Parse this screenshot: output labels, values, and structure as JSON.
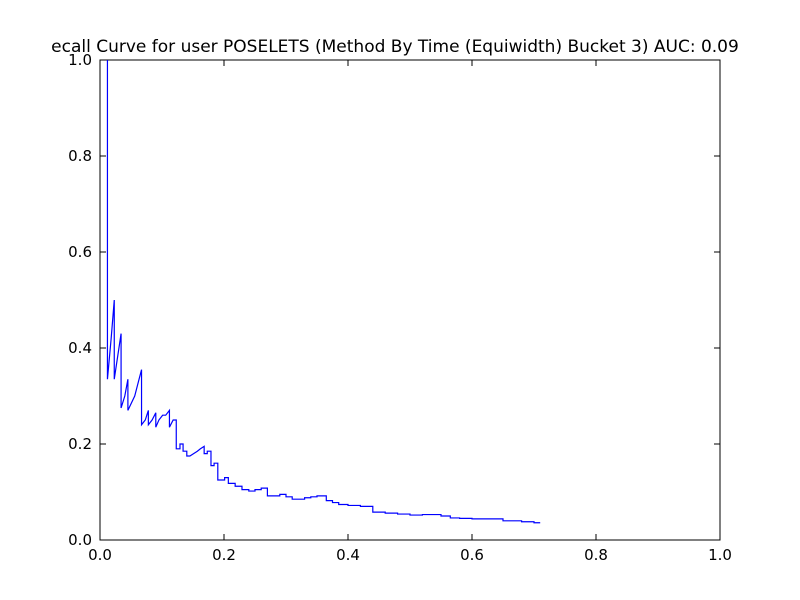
{
  "chart_data": {
    "type": "line",
    "title": "ecall Curve for user POSELETS (Method By Time (Equiwidth) Bucket 3) AUC: 0.09",
    "xlabel": "",
    "ylabel": "",
    "xlim": [
      0.0,
      1.0
    ],
    "ylim": [
      0.0,
      1.0
    ],
    "grid": false,
    "x_ticks": [
      "0.0",
      "0.2",
      "0.4",
      "0.6",
      "0.8",
      "1.0"
    ],
    "y_ticks": [
      "0.0",
      "0.2",
      "0.4",
      "0.6",
      "0.8",
      "1.0"
    ],
    "line_color": "#0000ff",
    "series": [
      {
        "points": [
          [
            0.012,
            1.0
          ],
          [
            0.012,
            0.335
          ],
          [
            0.018,
            0.42
          ],
          [
            0.023,
            0.5
          ],
          [
            0.023,
            0.335
          ],
          [
            0.034,
            0.43
          ],
          [
            0.034,
            0.275
          ],
          [
            0.04,
            0.3
          ],
          [
            0.045,
            0.335
          ],
          [
            0.045,
            0.27
          ],
          [
            0.056,
            0.3
          ],
          [
            0.067,
            0.355
          ],
          [
            0.067,
            0.24
          ],
          [
            0.073,
            0.25
          ],
          [
            0.078,
            0.27
          ],
          [
            0.078,
            0.24
          ],
          [
            0.084,
            0.25
          ],
          [
            0.09,
            0.265
          ],
          [
            0.09,
            0.235
          ],
          [
            0.095,
            0.25
          ],
          [
            0.101,
            0.26
          ],
          [
            0.106,
            0.26
          ],
          [
            0.112,
            0.27
          ],
          [
            0.112,
            0.235
          ],
          [
            0.118,
            0.25
          ],
          [
            0.123,
            0.25
          ],
          [
            0.123,
            0.19
          ],
          [
            0.129,
            0.19
          ],
          [
            0.129,
            0.2
          ],
          [
            0.134,
            0.2
          ],
          [
            0.134,
            0.185
          ],
          [
            0.14,
            0.185
          ],
          [
            0.14,
            0.175
          ],
          [
            0.145,
            0.175
          ],
          [
            0.151,
            0.18
          ],
          [
            0.157,
            0.185
          ],
          [
            0.162,
            0.19
          ],
          [
            0.168,
            0.195
          ],
          [
            0.168,
            0.18
          ],
          [
            0.173,
            0.18
          ],
          [
            0.173,
            0.185
          ],
          [
            0.179,
            0.185
          ],
          [
            0.179,
            0.155
          ],
          [
            0.184,
            0.155
          ],
          [
            0.184,
            0.16
          ],
          [
            0.19,
            0.16
          ],
          [
            0.19,
            0.125
          ],
          [
            0.201,
            0.125
          ],
          [
            0.201,
            0.13
          ],
          [
            0.207,
            0.13
          ],
          [
            0.207,
            0.118
          ],
          [
            0.218,
            0.118
          ],
          [
            0.218,
            0.112
          ],
          [
            0.229,
            0.112
          ],
          [
            0.229,
            0.105
          ],
          [
            0.24,
            0.105
          ],
          [
            0.24,
            0.102
          ],
          [
            0.25,
            0.102
          ],
          [
            0.25,
            0.105
          ],
          [
            0.26,
            0.105
          ],
          [
            0.26,
            0.108
          ],
          [
            0.27,
            0.108
          ],
          [
            0.27,
            0.092
          ],
          [
            0.29,
            0.092
          ],
          [
            0.29,
            0.095
          ],
          [
            0.3,
            0.095
          ],
          [
            0.3,
            0.09
          ],
          [
            0.31,
            0.09
          ],
          [
            0.31,
            0.085
          ],
          [
            0.33,
            0.085
          ],
          [
            0.33,
            0.088
          ],
          [
            0.34,
            0.088
          ],
          [
            0.34,
            0.09
          ],
          [
            0.35,
            0.09
          ],
          [
            0.35,
            0.092
          ],
          [
            0.365,
            0.092
          ],
          [
            0.365,
            0.082
          ],
          [
            0.375,
            0.082
          ],
          [
            0.375,
            0.078
          ],
          [
            0.385,
            0.078
          ],
          [
            0.385,
            0.074
          ],
          [
            0.4,
            0.074
          ],
          [
            0.4,
            0.072
          ],
          [
            0.42,
            0.072
          ],
          [
            0.42,
            0.07
          ],
          [
            0.44,
            0.07
          ],
          [
            0.44,
            0.058
          ],
          [
            0.46,
            0.058
          ],
          [
            0.46,
            0.056
          ],
          [
            0.48,
            0.056
          ],
          [
            0.48,
            0.054
          ],
          [
            0.5,
            0.054
          ],
          [
            0.5,
            0.052
          ],
          [
            0.52,
            0.052
          ],
          [
            0.52,
            0.053
          ],
          [
            0.55,
            0.053
          ],
          [
            0.55,
            0.05
          ],
          [
            0.565,
            0.05
          ],
          [
            0.565,
            0.046
          ],
          [
            0.58,
            0.046
          ],
          [
            0.58,
            0.045
          ],
          [
            0.6,
            0.045
          ],
          [
            0.6,
            0.044
          ],
          [
            0.65,
            0.044
          ],
          [
            0.65,
            0.04
          ],
          [
            0.68,
            0.04
          ],
          [
            0.68,
            0.038
          ],
          [
            0.7,
            0.038
          ],
          [
            0.7,
            0.036
          ],
          [
            0.71,
            0.036
          ]
        ]
      }
    ]
  }
}
